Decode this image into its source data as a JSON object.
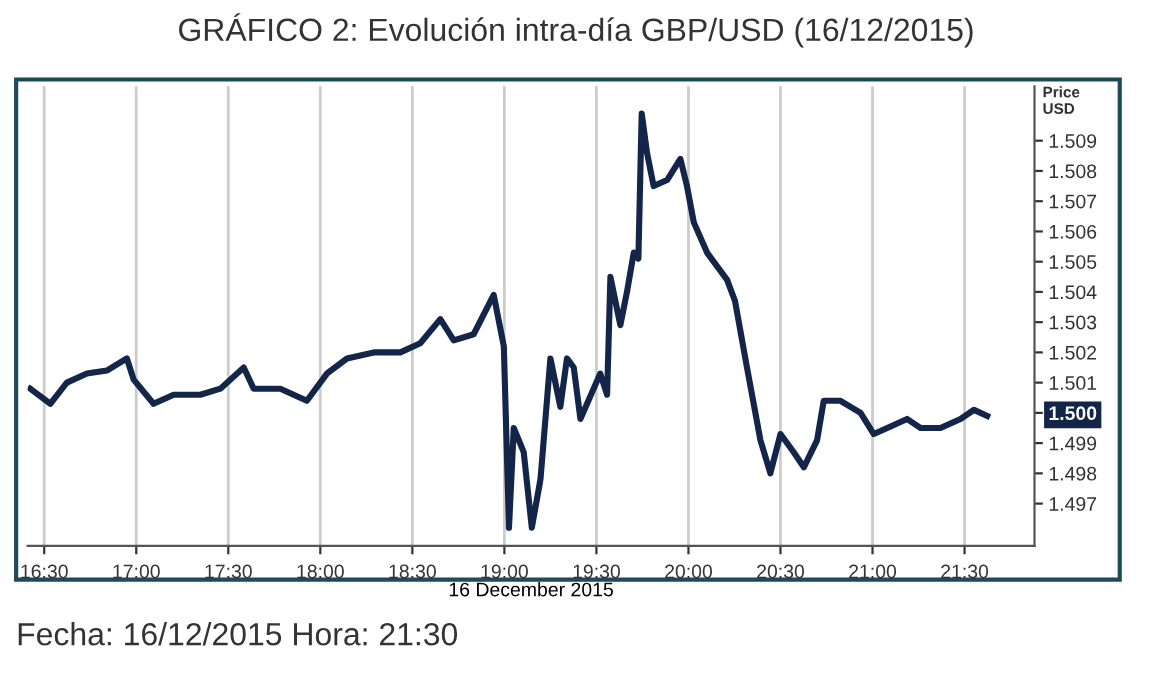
{
  "chart_data": {
    "type": "line",
    "title": "GRÁFICO 2: Evolución intra-día GBP/USD (16/12/2015)",
    "xlabel": "16 December 2015",
    "ylabel": "Price\nUSD",
    "series": [
      {
        "color": "#14254a",
        "x": [
          16.424,
          16.533,
          16.623,
          16.732,
          16.84,
          16.949,
          16.986,
          17.094,
          17.203,
          17.348,
          17.457,
          17.584,
          17.638,
          17.783,
          17.927,
          18.036,
          18.145,
          18.29,
          18.435,
          18.543,
          18.652,
          18.725,
          18.833,
          18.942,
          18.997,
          19.025,
          19.051,
          19.105,
          19.149,
          19.196,
          19.25,
          19.304,
          19.34,
          19.377,
          19.413,
          19.521,
          19.558,
          19.576,
          19.63,
          19.666,
          19.703,
          19.728,
          19.746,
          19.775,
          19.811,
          19.884,
          19.956,
          19.992,
          20.029,
          20.101,
          20.21,
          20.253,
          20.318,
          20.391,
          20.445,
          20.5,
          20.572,
          20.627,
          20.699,
          20.735,
          20.826,
          20.935,
          21.007,
          21.08,
          21.188,
          21.261,
          21.369,
          21.478,
          21.551,
          21.623
        ],
        "values": [
          1.5008,
          1.5003,
          1.501,
          1.5013,
          1.5014,
          1.5018,
          1.5011,
          1.5003,
          1.5006,
          1.5006,
          1.5008,
          1.5015,
          1.5008,
          1.5008,
          1.5004,
          1.5013,
          1.5018,
          1.502,
          1.502,
          1.5023,
          1.5031,
          1.5024,
          1.5026,
          1.5039,
          1.5022,
          1.4962,
          1.4995,
          1.4987,
          1.4962,
          1.4978,
          1.5018,
          1.5002,
          1.5018,
          1.5015,
          1.4998,
          1.5013,
          1.5006,
          1.5045,
          1.5029,
          1.504,
          1.5053,
          1.5051,
          1.5099,
          1.5086,
          1.5075,
          1.5077,
          1.5084,
          1.5075,
          1.5063,
          1.5053,
          1.5044,
          1.5037,
          1.5015,
          1.4991,
          1.498,
          1.4993,
          1.4987,
          1.4982,
          1.4991,
          1.5004,
          1.5004,
          1.5,
          1.4993,
          1.4995,
          1.4998,
          1.4995,
          1.4995,
          1.4998,
          1.5001,
          1.4999
        ]
      }
    ],
    "xlim": [
      16.41,
      21.88
    ],
    "ylim": [
      1.4956,
      1.5108
    ],
    "xticks": [
      {
        "value": 16.5,
        "label": "16:30"
      },
      {
        "value": 17,
        "label": "17:00"
      },
      {
        "value": 17.5,
        "label": "17:30"
      },
      {
        "value": 18,
        "label": "18:00"
      },
      {
        "value": 18.5,
        "label": "18:30"
      },
      {
        "value": 19,
        "label": "19:00"
      },
      {
        "value": 19.5,
        "label": "19:30"
      },
      {
        "value": 20,
        "label": "20:00"
      },
      {
        "value": 20.5,
        "label": "20:30"
      },
      {
        "value": 21,
        "label": "21:00"
      },
      {
        "value": 21.5,
        "label": "21:30"
      }
    ],
    "yticks": [
      1.497,
      1.498,
      1.499,
      {
        "value": 1.5,
        "label": "1.500"
      },
      1.501,
      1.502,
      1.503,
      1.504,
      1.505,
      1.506,
      1.507,
      1.508,
      1.509
    ],
    "grid": "x",
    "legend": false,
    "marker": "none",
    "line_style": "solid",
    "annotations": [
      "Fecha: 16/12/2015 Hora: 21:30"
    ]
  }
}
